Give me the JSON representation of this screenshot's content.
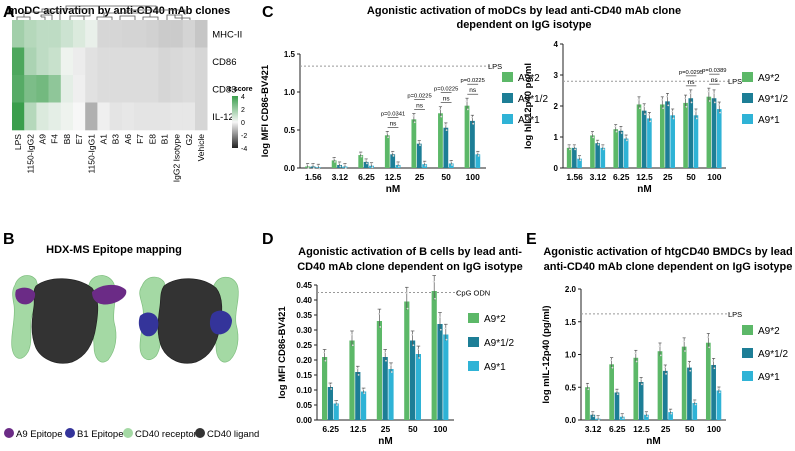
{
  "panels": {
    "A": "A",
    "B": "B",
    "C": "C",
    "D": "D",
    "E": "E"
  },
  "colors": {
    "green": "#5cb868",
    "teal": "#1d7e96",
    "cyan": "#2fb3d6",
    "heat_green": "#3a9e4c",
    "heat_gray": "#8a8a8a",
    "heat_white": "#f7f7f7",
    "a9_epitope": "#6b2b86",
    "b1_epitope": "#34349a",
    "receptor": "#a4d9a4",
    "ligand": "#333333"
  },
  "panelB": {
    "title": "HDX-MS Epitope mapping",
    "legend": [
      "A9 Epitope",
      "B1 Epitope",
      "CD40 receptors",
      "CD40 ligand"
    ]
  },
  "chart_data": [
    {
      "id": "A",
      "type": "heatmap",
      "title": "moDC activation by anti-CD40 mAb clones",
      "rows": [
        "MHC-II",
        "CD86",
        "CD83",
        "IL-12"
      ],
      "columns": [
        "LPS",
        "1150-IgG2",
        "A9",
        "F4",
        "B8",
        "E7",
        "1150-IgG1",
        "A1",
        "B3",
        "A6",
        "F7",
        "E8",
        "B1",
        "IgG2 Isotype",
        "G2",
        "Vehicle"
      ],
      "values": [
        [
          1.8,
          1.4,
          1.2,
          1.2,
          0.9,
          0.6,
          0.3,
          -1.2,
          -1.2,
          -1.3,
          -1.3,
          -1.4,
          -1.6,
          -1.6,
          -1.3,
          -1.8
        ],
        [
          3.6,
          1.6,
          1.2,
          1.0,
          0.2,
          -0.4,
          -0.8,
          -1.0,
          -1.0,
          -1.0,
          -1.0,
          -1.0,
          -1.2,
          -1.1,
          -1.0,
          -1.2
        ],
        [
          3.4,
          2.6,
          2.8,
          2.2,
          0.4,
          -0.3,
          -0.8,
          -1.0,
          -1.0,
          -1.0,
          -1.0,
          -1.0,
          -1.2,
          -1.1,
          -1.0,
          -1.2
        ],
        [
          4.2,
          1.4,
          0.6,
          0.4,
          0.2,
          0.0,
          -2.6,
          -0.3,
          -0.7,
          -0.6,
          -0.7,
          -0.7,
          -0.7,
          -0.6,
          -0.6,
          -1.2
        ]
      ],
      "scale": {
        "title": "z-score",
        "ticks": [
          "4",
          "2",
          "0",
          "-2",
          "-4"
        ],
        "min": -4,
        "max": 4
      }
    },
    {
      "id": "C1",
      "type": "bar",
      "title": "Agonistic activation of moDCs by lead anti-CD40 mAb clone dependent on IgG isotype",
      "categories": [
        "1.56",
        "3.12",
        "6.25",
        "12.5",
        "25",
        "50",
        "100"
      ],
      "xlabel": "nM",
      "ylabel": "log MFI CD86-BV421",
      "ylim": [
        0,
        1.5
      ],
      "yticks": [
        "0.0",
        "0.5",
        "1.0",
        "1.5"
      ],
      "ytick_values": [
        0,
        0.5,
        1.0,
        1.5
      ],
      "reference": {
        "label": "LPS",
        "value": 1.34
      },
      "series": [
        {
          "name": "A9*2",
          "values": [
            0.02,
            0.1,
            0.17,
            0.43,
            0.64,
            0.72,
            0.82
          ]
        },
        {
          "name": "A9*1/2",
          "values": [
            0.02,
            0.04,
            0.08,
            0.18,
            0.32,
            0.53,
            0.62
          ]
        },
        {
          "name": "A9*1",
          "values": [
            0.01,
            0.02,
            0.03,
            0.04,
            0.05,
            0.06,
            0.18
          ]
        }
      ],
      "annotations": [
        {
          "category": "12.5",
          "p": "p=0.0341",
          "ns": "ns"
        },
        {
          "category": "25",
          "p": "p=0.0225",
          "ns": "ns"
        },
        {
          "category": "50",
          "p": "p=0.0225",
          "ns": "ns"
        },
        {
          "category": "100",
          "p": "p=0.0225",
          "ns": "ns"
        }
      ]
    },
    {
      "id": "C2",
      "type": "bar",
      "title": "",
      "categories": [
        "1.56",
        "3.12",
        "6.25",
        "12.5",
        "25",
        "50",
        "100"
      ],
      "xlabel": "nM",
      "ylabel": "log hIL12p40 pg/ml",
      "ylim": [
        0,
        4
      ],
      "yticks": [
        "0",
        "1",
        "2",
        "3",
        "4"
      ],
      "ytick_values": [
        0,
        1,
        2,
        3,
        4
      ],
      "reference": {
        "label": "LPS",
        "value": 2.8
      },
      "series": [
        {
          "name": "A9*2",
          "values": [
            0.65,
            1.05,
            1.25,
            2.05,
            2.05,
            2.1,
            2.3
          ]
        },
        {
          "name": "A9*1/2",
          "values": [
            0.65,
            0.8,
            1.2,
            1.85,
            2.15,
            2.25,
            2.25
          ]
        },
        {
          "name": "A9*1",
          "values": [
            0.3,
            0.65,
            0.95,
            1.6,
            1.7,
            1.7,
            1.9
          ]
        }
      ],
      "annotations": [
        {
          "category": "50",
          "p": "p=0.0295",
          "ns": "ns"
        },
        {
          "category": "100",
          "p": "p=0.0389",
          "ns": "ns"
        }
      ]
    },
    {
      "id": "D",
      "type": "bar",
      "title": "Agonistic activation of B cells by lead anti-CD40 mAb clone dependent on IgG isotype",
      "categories": [
        "6.25",
        "12.5",
        "25",
        "50",
        "100"
      ],
      "xlabel": "nM",
      "ylabel": "log MFI CD86-BV421",
      "ylim": [
        0,
        0.45
      ],
      "yticks": [
        "0.00",
        "0.05",
        "0.10",
        "0.15",
        "0.20",
        "0.25",
        "0.30",
        "0.35",
        "0.40",
        "0.45"
      ],
      "ytick_values": [
        0,
        0.05,
        0.1,
        0.15,
        0.2,
        0.25,
        0.3,
        0.35,
        0.4,
        0.45
      ],
      "reference": {
        "label": "CpG ODN",
        "value": 0.425
      },
      "series": [
        {
          "name": "A9*2",
          "values": [
            0.21,
            0.265,
            0.33,
            0.395,
            0.43
          ]
        },
        {
          "name": "A9*1/2",
          "values": [
            0.11,
            0.16,
            0.21,
            0.265,
            0.32
          ]
        },
        {
          "name": "A9*1",
          "values": [
            0.055,
            0.095,
            0.17,
            0.22,
            0.285
          ]
        }
      ],
      "annotations": []
    },
    {
      "id": "E",
      "type": "bar",
      "title": "Agonistic activation of htgCD40 BMDCs by lead anti-CD40 mAb clone dependent on IgG isotype",
      "categories": [
        "3.12",
        "6.25",
        "12.5",
        "25",
        "50",
        "100"
      ],
      "xlabel": "nM",
      "ylabel": "log mIL-12p40 (pg/ml)",
      "ylim": [
        0,
        2.0
      ],
      "yticks": [
        "0.0",
        "0.5",
        "1.0",
        "1.5",
        "2.0"
      ],
      "ytick_values": [
        0,
        0.5,
        1.0,
        1.5,
        2.0
      ],
      "reference": {
        "label": "LPS",
        "value": 1.62
      },
      "series": [
        {
          "name": "A9*2",
          "values": [
            0.5,
            0.85,
            0.95,
            1.05,
            1.12,
            1.18
          ]
        },
        {
          "name": "A9*1/2",
          "values": [
            0.08,
            0.42,
            0.58,
            0.75,
            0.8,
            0.84
          ]
        },
        {
          "name": "A9*1",
          "values": [
            0.02,
            0.05,
            0.08,
            0.12,
            0.26,
            0.45
          ]
        }
      ],
      "annotations": []
    }
  ]
}
